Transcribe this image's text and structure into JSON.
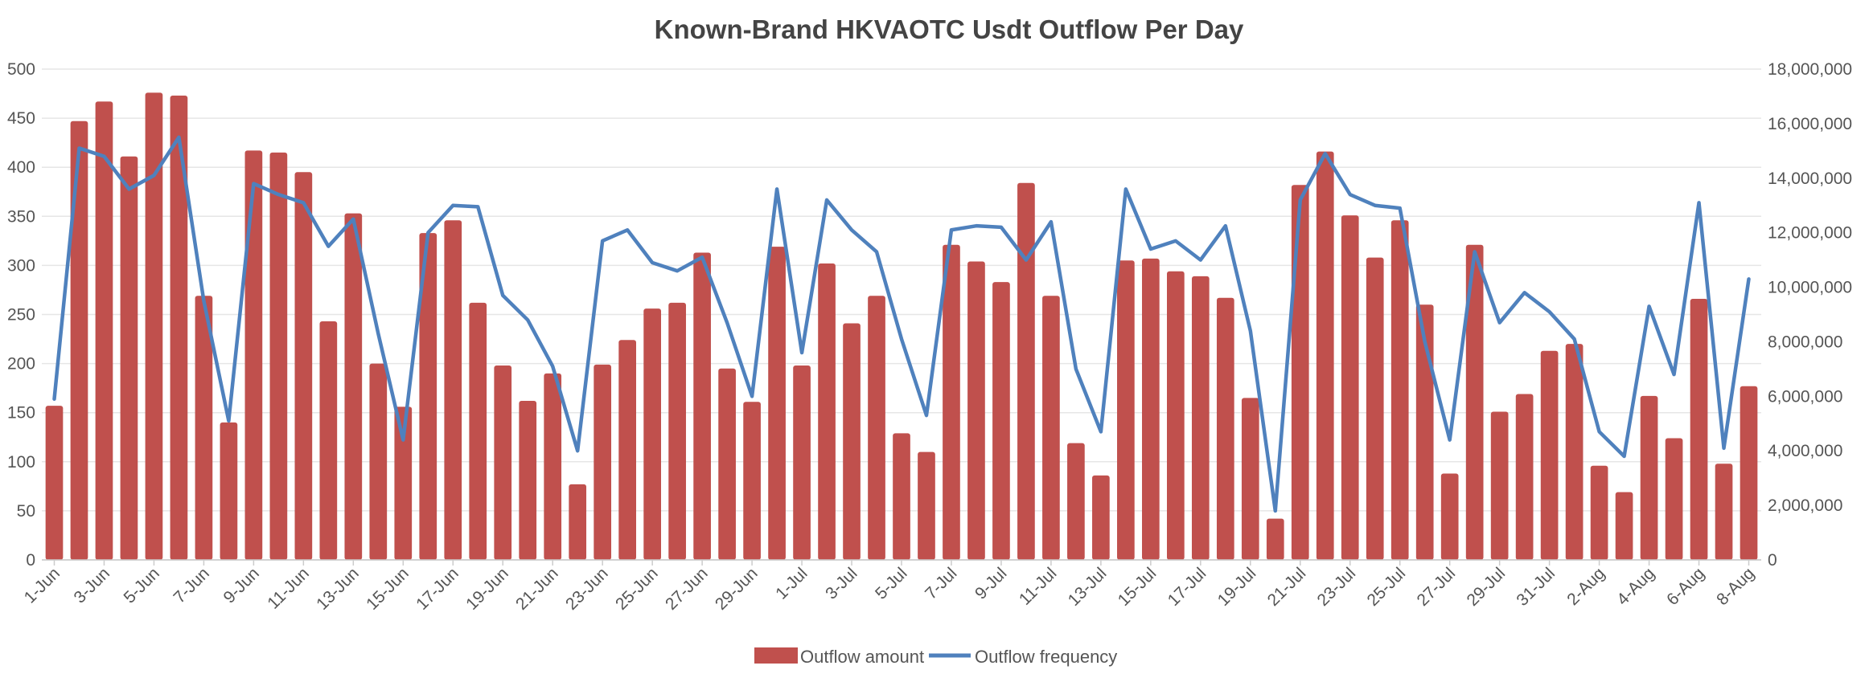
{
  "chart_data": {
    "type": "bar",
    "title": "Known-Brand HKVAOTC Usdt Outflow Per Day",
    "categories": [
      "1-Jun",
      "2-Jun",
      "3-Jun",
      "4-Jun",
      "5-Jun",
      "6-Jun",
      "7-Jun",
      "8-Jun",
      "9-Jun",
      "10-Jun",
      "11-Jun",
      "12-Jun",
      "13-Jun",
      "14-Jun",
      "15-Jun",
      "16-Jun",
      "17-Jun",
      "18-Jun",
      "19-Jun",
      "20-Jun",
      "21-Jun",
      "22-Jun",
      "23-Jun",
      "24-Jun",
      "25-Jun",
      "26-Jun",
      "27-Jun",
      "28-Jun",
      "29-Jun",
      "30-Jun",
      "1-Jul",
      "2-Jul",
      "3-Jul",
      "4-Jul",
      "5-Jul",
      "6-Jul",
      "7-Jul",
      "8-Jul",
      "9-Jul",
      "10-Jul",
      "11-Jul",
      "12-Jul",
      "13-Jul",
      "14-Jul",
      "15-Jul",
      "16-Jul",
      "17-Jul",
      "18-Jul",
      "19-Jul",
      "20-Jul",
      "21-Jul",
      "22-Jul",
      "23-Jul",
      "24-Jul",
      "25-Jul",
      "26-Jul",
      "27-Jul",
      "28-Jul",
      "29-Jul",
      "30-Jul",
      "31-Jul",
      "1-Aug",
      "2-Aug",
      "3-Aug",
      "4-Aug",
      "5-Aug",
      "6-Aug",
      "7-Aug",
      "8-Aug"
    ],
    "tick_labels": [
      "1-Jun",
      "3-Jun",
      "5-Jun",
      "7-Jun",
      "9-Jun",
      "11-Jun",
      "13-Jun",
      "15-Jun",
      "17-Jun",
      "19-Jun",
      "21-Jun",
      "23-Jun",
      "25-Jun",
      "27-Jun",
      "29-Jun",
      "1-Jul",
      "3-Jul",
      "5-Jul",
      "7-Jul",
      "9-Jul",
      "11-Jul",
      "13-Jul",
      "15-Jul",
      "17-Jul",
      "19-Jul",
      "21-Jul",
      "23-Jul",
      "25-Jul",
      "27-Jul",
      "29-Jul",
      "31-Jul",
      "2-Aug",
      "4-Aug",
      "6-Aug",
      "8-Aug"
    ],
    "series": [
      {
        "name": "Outflow amount",
        "type": "bar",
        "axis": "left",
        "color": "#c0504d",
        "values": [
          157,
          447,
          467,
          411,
          476,
          473,
          269,
          140,
          417,
          415,
          395,
          243,
          353,
          200,
          156,
          333,
          346,
          262,
          198,
          162,
          190,
          77,
          199,
          224,
          256,
          262,
          313,
          195,
          161,
          319,
          198,
          302,
          241,
          269,
          129,
          110,
          321,
          304,
          283,
          384,
          269,
          119,
          86,
          305,
          307,
          294,
          289,
          267,
          165,
          42,
          382,
          416,
          351,
          308,
          346,
          260,
          88,
          321,
          151,
          169,
          213,
          220,
          96,
          69,
          167,
          124,
          266,
          98,
          177
        ]
      },
      {
        "name": "Outflow frequency",
        "type": "line",
        "axis": "right",
        "color": "#4f81bd",
        "values": [
          5900000,
          15100000,
          14800000,
          13600000,
          14100000,
          15500000,
          9500000,
          5100000,
          13800000,
          13400000,
          13100000,
          11500000,
          12500000,
          8300000,
          4400000,
          12000000,
          13000000,
          12950000,
          9700000,
          8800000,
          7100000,
          4000000,
          11700000,
          12100000,
          10900000,
          10600000,
          11100000,
          8700000,
          6000000,
          13600000,
          7600000,
          13200000,
          12100000,
          11300000,
          8100000,
          5300000,
          12100000,
          12250000,
          12200000,
          11000000,
          12400000,
          7000000,
          4700000,
          13600000,
          11400000,
          11700000,
          11000000,
          12250000,
          8400000,
          1800000,
          13200000,
          14900000,
          13400000,
          13000000,
          12900000,
          8000000,
          4400000,
          11300000,
          8700000,
          9800000,
          9100000,
          8100000,
          4700000,
          3800000,
          9300000,
          6800000,
          13100000,
          4100000,
          10300000
        ]
      }
    ],
    "left_axis": {
      "min": 0,
      "max": 500,
      "ticks": [
        "0",
        "50",
        "100",
        "150",
        "200",
        "250",
        "300",
        "350",
        "400",
        "450",
        "500"
      ]
    },
    "right_axis": {
      "min": 0,
      "max": 18000000,
      "ticks": [
        "0",
        "2,000,000",
        "4,000,000",
        "6,000,000",
        "8,000,000",
        "10,000,000",
        "12,000,000",
        "14,000,000",
        "16,000,000",
        "18,000,000"
      ]
    },
    "grid": true,
    "legend_position": "bottom-center",
    "xlabel": "",
    "ylabel": ""
  }
}
